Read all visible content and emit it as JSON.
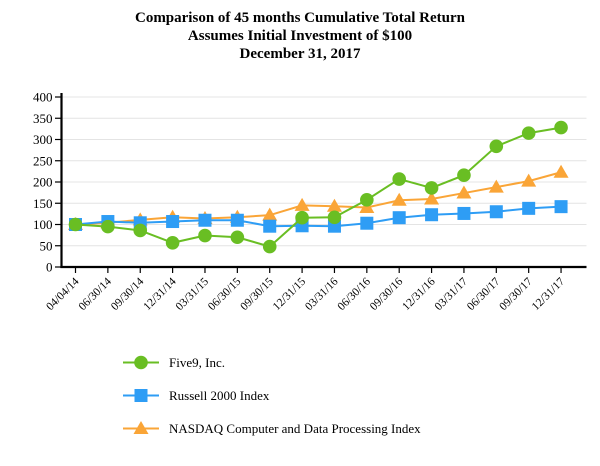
{
  "chart_data": {
    "type": "line",
    "title": "Comparison of 45 months Cumulative Total Return",
    "subtitle": "Assumes Initial Investment of $100",
    "date_label": "December 31, 2017",
    "xlabel": "",
    "ylabel": "",
    "ylim": [
      0,
      400
    ],
    "ytick_step": 50,
    "grid": "horizontal",
    "grid_color": "#e4e4e4",
    "axis_color": "#000000",
    "legend_position": "bottom-left",
    "x_labels": [
      "04/04/14",
      "06/30/14",
      "09/30/14",
      "12/31/14",
      "03/31/15",
      "06/30/15",
      "09/30/15",
      "12/31/15",
      "03/31/16",
      "06/30/16",
      "09/30/16",
      "12/31/16",
      "03/31/17",
      "06/30/17",
      "09/30/17",
      "12/31/17"
    ],
    "series": [
      {
        "name": "Five9, Inc.",
        "marker": "circle",
        "color": "#69be23",
        "values": [
          100,
          95,
          86,
          57,
          74,
          70,
          48,
          116,
          117,
          158,
          207,
          186,
          216,
          284,
          315,
          328
        ]
      },
      {
        "name": "Russell 2000 Index",
        "marker": "square",
        "color": "#2e9df5",
        "values": [
          100,
          107,
          104,
          107,
          110,
          110,
          96,
          97,
          96,
          103,
          116,
          123,
          126,
          130,
          138,
          142
        ]
      },
      {
        "name": "NASDAQ Computer and Data Processing Index",
        "marker": "triangle",
        "color": "#faa537",
        "values": [
          100,
          104,
          111,
          117,
          114,
          117,
          122,
          145,
          143,
          140,
          157,
          160,
          174,
          188,
          202,
          223
        ]
      }
    ]
  }
}
